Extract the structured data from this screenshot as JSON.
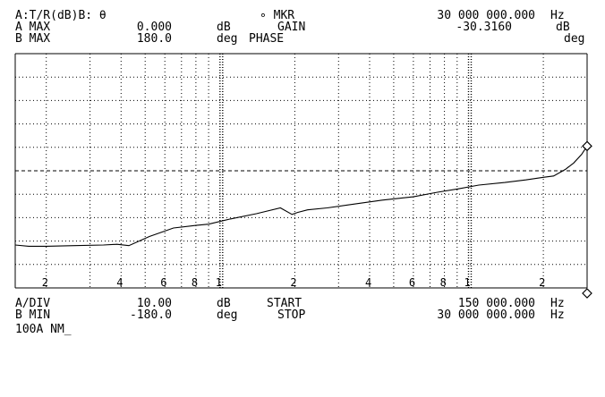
{
  "header": {
    "line1": {
      "trace": "A:T/R(dB)B: θ",
      "marker_label": "∘ MKR",
      "marker_freq": "30 000 000.000",
      "marker_unit": "Hz"
    },
    "line2": {
      "a_max_label": "A MAX",
      "a_max_value": "0.000",
      "a_unit": "dB",
      "a_param": "GAIN",
      "marker_value": "-30.3160",
      "marker_value_unit": "dB"
    },
    "line3": {
      "b_max_label": "B MAX",
      "b_max_value": "180.0",
      "b_unit": "deg",
      "b_param": "PHASE",
      "b_unit_right": "deg"
    }
  },
  "footer": {
    "line1": {
      "a_div_label": "A/DIV",
      "a_div_value": "10.00",
      "a_div_unit": "dB",
      "start_label": "START",
      "start_value": "150 000.000",
      "start_unit": "Hz"
    },
    "line2": {
      "b_min_label": "B MIN",
      "b_min_value": "-180.0",
      "b_min_unit": "deg",
      "stop_label": "STOP",
      "stop_value": "30 000 000.000",
      "stop_unit": "Hz"
    },
    "line3": {
      "command": "100A NM_"
    }
  },
  "chart_data": {
    "type": "line",
    "x_scale": "log",
    "xlim": [
      150000,
      30000000
    ],
    "ylim": [
      -180,
      180
    ],
    "ylabel": "deg",
    "grid": true,
    "x_tick_labels": [
      "2",
      "4",
      "6",
      "8",
      "1",
      "2",
      "4",
      "6",
      "8",
      "1",
      "2"
    ],
    "series": [
      {
        "name": "PHASE",
        "x": [
          150000,
          170000,
          200000,
          260000,
          340000,
          385000,
          430000,
          520000,
          650000,
          800000,
          900000,
          1100000,
          1400000,
          1750000,
          1950000,
          2050000,
          2250000,
          2700000,
          3500000,
          4500000,
          6000000,
          7500000,
          9000000,
          11000000,
          14000000,
          17000000,
          20000000,
          22000000,
          24500000,
          26500000,
          28500000,
          30000000
        ],
        "values": [
          -114,
          -116,
          -116,
          -115,
          -114,
          -113,
          -115,
          -101,
          -88,
          -84,
          -82,
          -74,
          -66,
          -57,
          -67,
          -64,
          -60,
          -57,
          -51,
          -45,
          -40,
          -33,
          -28,
          -22,
          -18,
          -14,
          -10,
          -8,
          2,
          12,
          25,
          38
        ]
      }
    ]
  }
}
